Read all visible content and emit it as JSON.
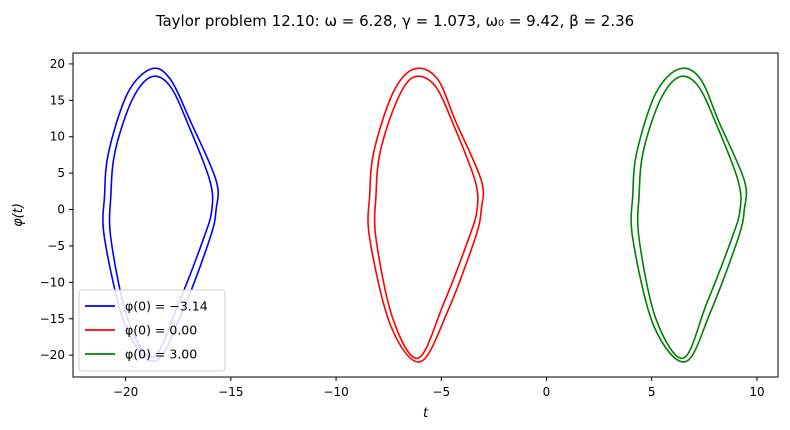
{
  "chart_data": {
    "type": "line",
    "title": "Taylor problem 12.10:   ω = 6.28,  γ = 1.073,  ω₀ = 9.42,  β = 2.36",
    "xlabel": "t",
    "ylabel": "φ(t)",
    "xlim": [
      -22.5,
      11.0
    ],
    "ylim": [
      -23.0,
      21.5
    ],
    "xticks": [
      -20,
      -15,
      -10,
      -5,
      0,
      5,
      10
    ],
    "xtick_labels": [
      "−20",
      "−15",
      "−10",
      "−5",
      "0",
      "5",
      "10"
    ],
    "yticks": [
      20,
      15,
      10,
      5,
      0,
      -5,
      -10,
      -15,
      -20
    ],
    "ytick_labels": [
      "20",
      "15",
      "10",
      "5",
      "0",
      "−5",
      "−10",
      "−15",
      "−20"
    ],
    "legend_position": "lower-left",
    "series": [
      {
        "name": "φ(0) = −3.14",
        "color": "#0000ff",
        "loops": [
          [
            [
              -18.8,
              19.3
            ],
            [
              -17.9,
              18.0
            ],
            [
              -16.9,
              12.0
            ],
            [
              -15.7,
              4.0
            ],
            [
              -15.7,
              0.0
            ],
            [
              -16.0,
              -4.0
            ],
            [
              -17.3,
              -14.0
            ],
            [
              -18.6,
              -20.8
            ],
            [
              -20.0,
              -16.0
            ],
            [
              -21.0,
              -4.0
            ],
            [
              -21.0,
              2.0
            ],
            [
              -20.8,
              8.0
            ],
            [
              -19.9,
              16.0
            ],
            [
              -18.8,
              19.3
            ]
          ],
          [
            [
              -18.8,
              18.2
            ],
            [
              -17.9,
              17.0
            ],
            [
              -17.0,
              11.5
            ],
            [
              -16.0,
              4.0
            ],
            [
              -15.9,
              0.0
            ],
            [
              -16.3,
              -4.0
            ],
            [
              -17.5,
              -13.0
            ],
            [
              -18.7,
              -20.3
            ],
            [
              -19.9,
              -15.0
            ],
            [
              -20.7,
              -4.0
            ],
            [
              -20.7,
              2.0
            ],
            [
              -20.5,
              8.0
            ],
            [
              -19.7,
              15.0
            ],
            [
              -18.8,
              18.2
            ]
          ]
        ]
      },
      {
        "name": "φ(0) = 0.00",
        "color": "#ff0000",
        "loops": [
          [
            [
              -6.3,
              19.3
            ],
            [
              -5.2,
              18.0
            ],
            [
              -4.3,
              12.0
            ],
            [
              -3.1,
              4.0
            ],
            [
              -3.1,
              0.0
            ],
            [
              -3.4,
              -4.0
            ],
            [
              -4.7,
              -14.0
            ],
            [
              -6.0,
              -20.9
            ],
            [
              -7.4,
              -16.0
            ],
            [
              -8.4,
              -4.0
            ],
            [
              -8.4,
              2.0
            ],
            [
              -8.2,
              8.0
            ],
            [
              -7.3,
              16.0
            ],
            [
              -6.3,
              19.3
            ]
          ],
          [
            [
              -6.3,
              18.2
            ],
            [
              -5.3,
              17.0
            ],
            [
              -4.4,
              11.5
            ],
            [
              -3.4,
              4.0
            ],
            [
              -3.3,
              0.0
            ],
            [
              -3.7,
              -4.0
            ],
            [
              -4.9,
              -13.0
            ],
            [
              -6.1,
              -20.4
            ],
            [
              -7.3,
              -15.0
            ],
            [
              -8.1,
              -4.0
            ],
            [
              -8.1,
              2.0
            ],
            [
              -7.9,
              8.0
            ],
            [
              -7.1,
              15.0
            ],
            [
              -6.3,
              18.2
            ]
          ]
        ]
      },
      {
        "name": "φ(0) = 3.00",
        "color": "#008000",
        "loops": [
          [
            [
              6.3,
              19.3
            ],
            [
              7.3,
              18.0
            ],
            [
              8.2,
              12.0
            ],
            [
              9.4,
              4.0
            ],
            [
              9.4,
              0.0
            ],
            [
              9.1,
              -4.0
            ],
            [
              7.8,
              -14.0
            ],
            [
              6.6,
              -20.9
            ],
            [
              5.1,
              -16.0
            ],
            [
              4.1,
              -4.0
            ],
            [
              4.1,
              2.0
            ],
            [
              4.3,
              8.0
            ],
            [
              5.2,
              16.0
            ],
            [
              6.3,
              19.3
            ]
          ],
          [
            [
              6.3,
              18.2
            ],
            [
              7.2,
              17.0
            ],
            [
              8.1,
              11.5
            ],
            [
              9.1,
              4.0
            ],
            [
              9.2,
              0.0
            ],
            [
              8.8,
              -4.0
            ],
            [
              7.6,
              -13.0
            ],
            [
              6.5,
              -20.4
            ],
            [
              5.2,
              -15.0
            ],
            [
              4.4,
              -4.0
            ],
            [
              4.4,
              2.0
            ],
            [
              4.6,
              8.0
            ],
            [
              5.4,
              15.0
            ],
            [
              6.3,
              18.2
            ]
          ]
        ]
      }
    ]
  }
}
